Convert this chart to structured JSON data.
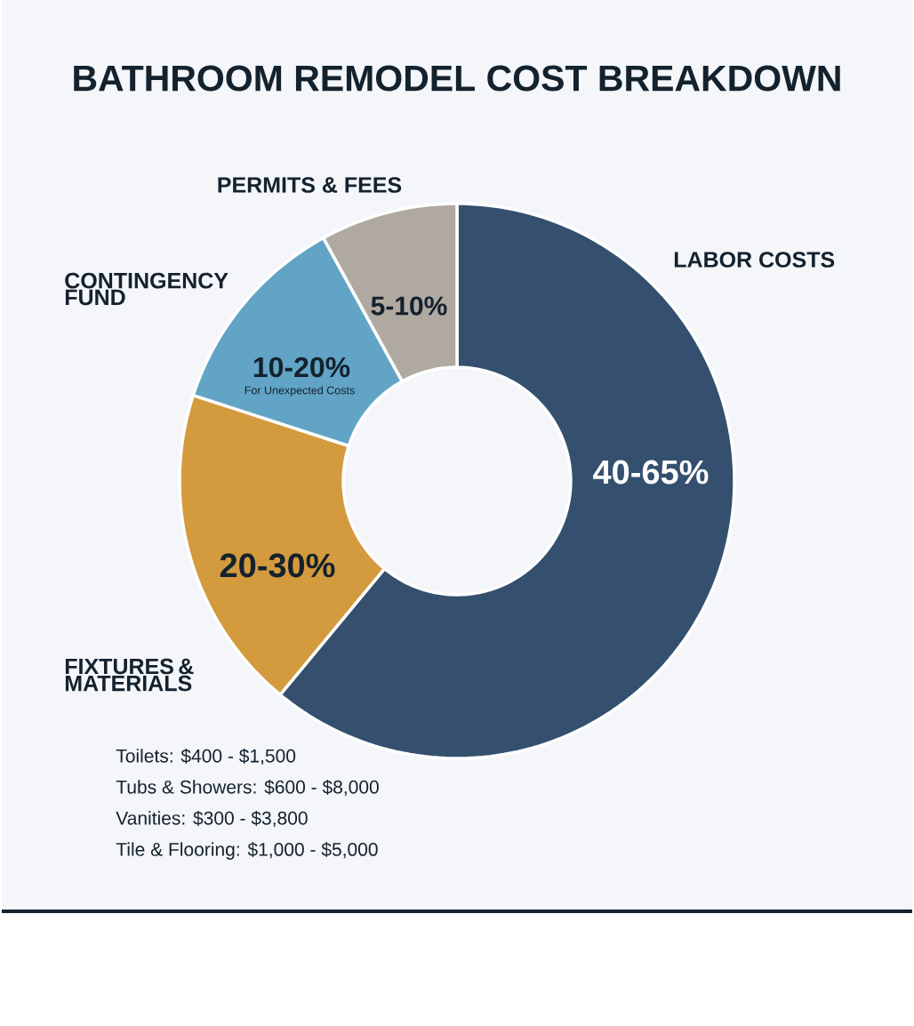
{
  "chart_data": {
    "type": "donut",
    "title": "BATHROOM REMODEL COST BREAKDOWN",
    "categories": [
      "LABOR COSTS",
      "FIXTURES & MATERIALS",
      "CONTINGENCY FUND",
      "PERMITS & FEES"
    ],
    "values": [
      61,
      19,
      12,
      8
    ],
    "colors": [
      "#34506e",
      "#d49a3e",
      "#62a4c6",
      "#b0a9a2"
    ],
    "annotations": [
      "40-65%",
      "20-30%",
      "10-20%",
      "5-10%",
      "For Unexpected Costs",
      "Toilets: $400 - $1,500",
      "Tubs & Showers: $600 - $8,000",
      "Vanities: $300 - $3,800",
      "Tile & Flooring: $1,000 - $5,000"
    ]
  }
}
